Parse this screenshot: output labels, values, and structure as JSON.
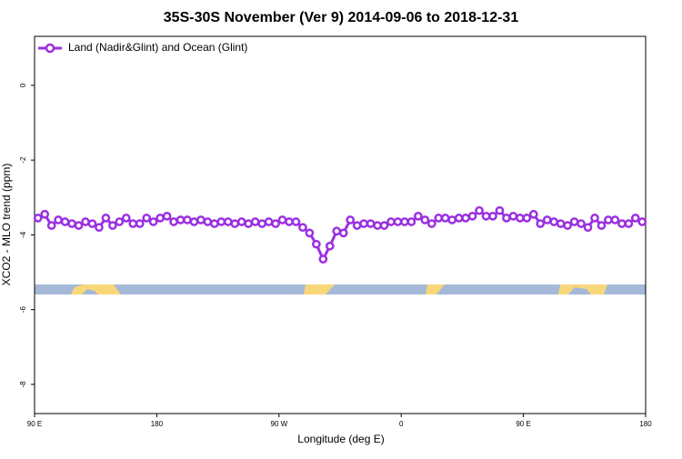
{
  "chart_data": {
    "type": "line",
    "title": "35S-30S November (Ver 9)   2014-09-06 to 2018-12-31",
    "x_label": "Longitude (deg E)",
    "y_label": "XCO2 - MLO trend (ppm)",
    "legend": "top-left",
    "xlim": [
      90,
      540
    ],
    "xticks": [
      {
        "value": 90,
        "label": "90 E"
      },
      180,
      {
        "value": 270,
        "label": "90 W"
      },
      {
        "value": 360,
        "label": "0"
      },
      {
        "value": 450,
        "label": "90 E"
      },
      {
        "value": 540,
        "label": "180"
      }
    ],
    "ylim": [
      -8.78,
      1.31
    ],
    "yticks": [
      0,
      -2,
      -4,
      -6,
      -8
    ],
    "x": [
      92.5,
      97.5,
      102.5,
      107.5,
      112.5,
      117.5,
      122.5,
      127.5,
      132.5,
      137.5,
      142.5,
      147.5,
      152.5,
      157.5,
      162.5,
      167.5,
      172.5,
      177.5,
      182.5,
      187.5,
      192.5,
      197.5,
      202.5,
      207.5,
      212.5,
      217.5,
      222.5,
      227.5,
      232.5,
      237.5,
      242.5,
      247.5,
      252.5,
      257.5,
      262.5,
      267.5,
      272.5,
      277.5,
      282.5,
      287.5,
      292.5,
      297.5,
      302.5,
      307.5,
      312.5,
      317.5,
      322.5,
      327.5,
      332.5,
      337.5,
      342.5,
      347.5,
      352.5,
      357.5,
      362.5,
      367.5,
      372.5,
      377.5,
      382.5,
      387.5,
      392.5,
      397.5,
      402.5,
      407.5,
      412.5,
      417.5,
      422.5,
      427.5,
      432.5,
      437.5,
      442.5,
      447.5,
      452.5,
      457.5,
      462.5,
      467.5,
      472.5,
      477.5,
      482.5,
      487.5,
      492.5,
      497.5,
      502.5,
      507.5,
      512.5,
      517.5,
      522.5,
      527.5,
      532.5,
      537.5
    ],
    "series": [
      {
        "name": "Land (Nadir&Glint) and Ocean (Glint)",
        "color": "#9b30e0",
        "values": [
          -3.55,
          -3.45,
          -3.75,
          -3.6,
          -3.65,
          -3.7,
          -3.75,
          -3.65,
          -3.7,
          -3.8,
          -3.55,
          -3.75,
          -3.65,
          -3.55,
          -3.7,
          -3.7,
          -3.55,
          -3.65,
          -3.55,
          -3.5,
          -3.65,
          -3.6,
          -3.6,
          -3.65,
          -3.6,
          -3.65,
          -3.7,
          -3.65,
          -3.65,
          -3.7,
          -3.65,
          -3.7,
          -3.65,
          -3.7,
          -3.65,
          -3.7,
          -3.6,
          -3.65,
          -3.65,
          -3.8,
          -3.95,
          -4.25,
          -4.65,
          -4.3,
          -3.9,
          -3.95,
          -3.6,
          -3.75,
          -3.7,
          -3.7,
          -3.75,
          -3.75,
          -3.65,
          -3.65,
          -3.65,
          -3.65,
          -3.5,
          -3.6,
          -3.7,
          -3.55,
          -3.55,
          -3.6,
          -3.55,
          -3.55,
          -3.5,
          -3.35,
          -3.5,
          -3.5,
          -3.35,
          -3.55,
          -3.5,
          -3.55,
          -3.55,
          -3.45,
          -3.7,
          -3.6,
          -3.65,
          -3.7,
          -3.75,
          -3.65,
          -3.7,
          -3.8,
          -3.55,
          -3.75,
          -3.6,
          -3.6,
          -3.7,
          -3.7,
          -3.55,
          -3.65
        ]
      }
    ]
  }
}
